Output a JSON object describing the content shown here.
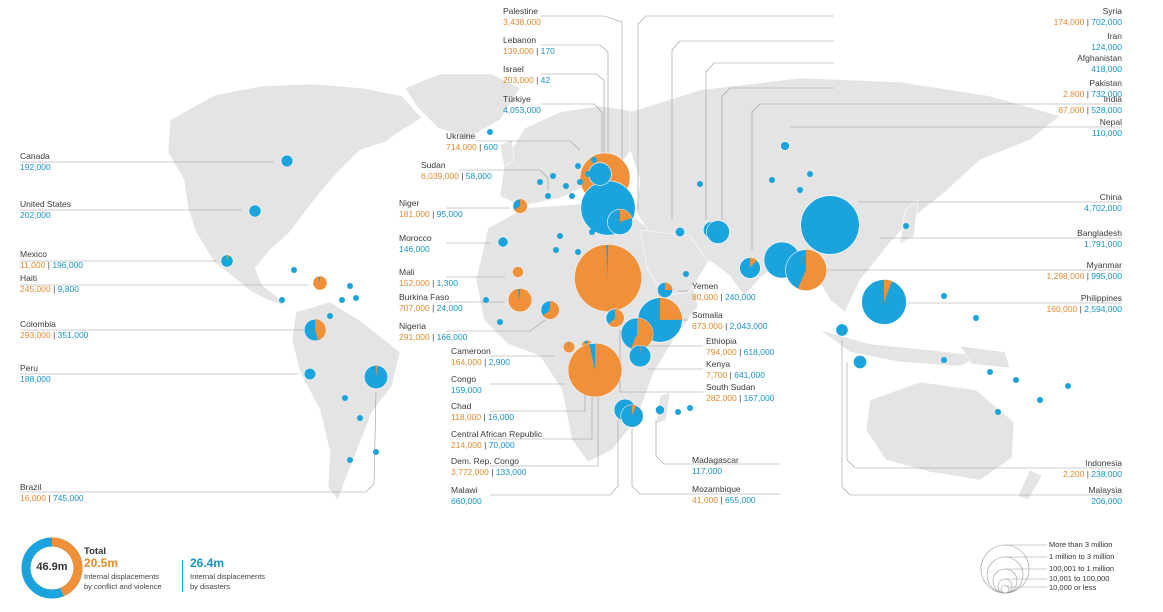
{
  "colors": {
    "conflict": "#f0913a",
    "disaster": "#1aa3dc",
    "land": "#e4e4e4",
    "leader": "#9a9a9a"
  },
  "countries": [
    {
      "key": "palestine",
      "name": "Palestine",
      "conflict": "3,438,000",
      "disaster": "",
      "conflict_n": 3438000,
      "disaster_n": 0
    },
    {
      "key": "lebanon",
      "name": "Lebanon",
      "conflict": "139,000",
      "disaster": "170",
      "conflict_n": 139000,
      "disaster_n": 170
    },
    {
      "key": "israel",
      "name": "Israel",
      "conflict": "203,000",
      "disaster": "42",
      "conflict_n": 203000,
      "disaster_n": 42
    },
    {
      "key": "turkiye",
      "name": "Türkiye",
      "conflict": "",
      "disaster": "4,053,000",
      "conflict_n": 0,
      "disaster_n": 4053000
    },
    {
      "key": "ukraine",
      "name": "Ukraine",
      "conflict": "714,000",
      "disaster": "600",
      "conflict_n": 714000,
      "disaster_n": 600
    },
    {
      "key": "sudan",
      "name": "Sudan",
      "conflict": "6,039,000",
      "disaster": "58,000",
      "conflict_n": 6039000,
      "disaster_n": 58000
    },
    {
      "key": "niger",
      "name": "Niger",
      "conflict": "181,000",
      "disaster": "95,000",
      "conflict_n": 181000,
      "disaster_n": 95000
    },
    {
      "key": "morocco",
      "name": "Morocco",
      "conflict": "",
      "disaster": "146,000",
      "conflict_n": 0,
      "disaster_n": 146000
    },
    {
      "key": "mali",
      "name": "Mali",
      "conflict": "152,000",
      "disaster": "1,300",
      "conflict_n": 152000,
      "disaster_n": 1300
    },
    {
      "key": "burkina",
      "name": "Burkina Faso",
      "conflict": "707,000",
      "disaster": "24,000",
      "conflict_n": 707000,
      "disaster_n": 24000
    },
    {
      "key": "nigeria",
      "name": "Nigeria",
      "conflict": "291,000",
      "disaster": "166,000",
      "conflict_n": 291000,
      "disaster_n": 166000
    },
    {
      "key": "cameroon",
      "name": "Cameroon",
      "conflict": "164,000",
      "disaster": "2,900",
      "conflict_n": 164000,
      "disaster_n": 2900
    },
    {
      "key": "congo",
      "name": "Congo",
      "conflict": "",
      "disaster": "159,000",
      "conflict_n": 0,
      "disaster_n": 159000
    },
    {
      "key": "chad",
      "name": "Chad",
      "conflict": "118,000",
      "disaster": "16,000",
      "conflict_n": 118000,
      "disaster_n": 16000
    },
    {
      "key": "car",
      "name": "Central African Republic",
      "conflict": "214,000",
      "disaster": "70,000",
      "conflict_n": 214000,
      "disaster_n": 70000
    },
    {
      "key": "drc",
      "name": "Dem. Rep. Congo",
      "conflict": "3,772,000",
      "disaster": "133,000",
      "conflict_n": 3772000,
      "disaster_n": 133000
    },
    {
      "key": "malawi",
      "name": "Malawi",
      "conflict": "",
      "disaster": "660,000",
      "conflict_n": 0,
      "disaster_n": 660000
    },
    {
      "key": "syria",
      "name": "Syria",
      "conflict": "174,000",
      "disaster": "702,000",
      "conflict_n": 174000,
      "disaster_n": 702000
    },
    {
      "key": "iran",
      "name": "Iran",
      "conflict": "",
      "disaster": "124,000",
      "conflict_n": 0,
      "disaster_n": 124000
    },
    {
      "key": "afghanistan",
      "name": "Afghanistan",
      "conflict": "",
      "disaster": "418,000",
      "conflict_n": 0,
      "disaster_n": 418000
    },
    {
      "key": "pakistan",
      "name": "Pakistan",
      "conflict": "2,800",
      "disaster": "732,000",
      "conflict_n": 2800,
      "disaster_n": 732000
    },
    {
      "key": "india",
      "name": "India",
      "conflict": "67,000",
      "disaster": "528,000",
      "conflict_n": 67000,
      "disaster_n": 528000
    },
    {
      "key": "nepal",
      "name": "Nepal",
      "conflict": "",
      "disaster": "110,000",
      "conflict_n": 0,
      "disaster_n": 110000
    },
    {
      "key": "china",
      "name": "China",
      "conflict": "",
      "disaster": "4,702,000",
      "conflict_n": 0,
      "disaster_n": 4702000
    },
    {
      "key": "bangladesh",
      "name": "Bangladesh",
      "conflict": "",
      "disaster": "1,791,000",
      "conflict_n": 0,
      "disaster_n": 1791000
    },
    {
      "key": "myanmar",
      "name": "Myanmar",
      "conflict": "1,298,000",
      "disaster": "995,000",
      "conflict_n": 1298000,
      "disaster_n": 995000
    },
    {
      "key": "philippines",
      "name": "Philippines",
      "conflict": "160,000",
      "disaster": "2,594,000",
      "conflict_n": 160000,
      "disaster_n": 2594000
    },
    {
      "key": "yemen",
      "name": "Yemen",
      "conflict": "80,000",
      "disaster": "240,000",
      "conflict_n": 80000,
      "disaster_n": 240000
    },
    {
      "key": "somalia",
      "name": "Somalia",
      "conflict": "673,000",
      "disaster": "2,043,000",
      "conflict_n": 673000,
      "disaster_n": 2043000
    },
    {
      "key": "ethiopia",
      "name": "Ethiopia",
      "conflict": "794,000",
      "disaster": "618,000",
      "conflict_n": 794000,
      "disaster_n": 618000
    },
    {
      "key": "kenya",
      "name": "Kenya",
      "conflict": "7,700",
      "disaster": "641,000",
      "conflict_n": 7700,
      "disaster_n": 641000
    },
    {
      "key": "southsudan",
      "name": "South Sudan",
      "conflict": "282,000",
      "disaster": "167,000",
      "conflict_n": 282000,
      "disaster_n": 167000
    },
    {
      "key": "madagascar",
      "name": "Madagascar",
      "conflict": "",
      "disaster": "117,000",
      "conflict_n": 0,
      "disaster_n": 117000
    },
    {
      "key": "mozambique",
      "name": "Mozambique",
      "conflict": "41,000",
      "disaster": "655,000",
      "conflict_n": 41000,
      "disaster_n": 655000
    },
    {
      "key": "indonesia",
      "name": "Indonesia",
      "conflict": "2,200",
      "disaster": "238,000",
      "conflict_n": 2200,
      "disaster_n": 238000
    },
    {
      "key": "malaysia",
      "name": "Malaysia",
      "conflict": "",
      "disaster": "206,000",
      "conflict_n": 0,
      "disaster_n": 206000
    },
    {
      "key": "canada",
      "name": "Canada",
      "conflict": "",
      "disaster": "192,000",
      "conflict_n": 0,
      "disaster_n": 192000
    },
    {
      "key": "us",
      "name": "United States",
      "conflict": "",
      "disaster": "202,000",
      "conflict_n": 0,
      "disaster_n": 202000
    },
    {
      "key": "mexico",
      "name": "Mexico",
      "conflict": "11,000",
      "disaster": "196,000",
      "conflict_n": 11000,
      "disaster_n": 196000
    },
    {
      "key": "haiti",
      "name": "Haiti",
      "conflict": "245,000",
      "disaster": "9,800",
      "conflict_n": 245000,
      "disaster_n": 9800
    },
    {
      "key": "colombia",
      "name": "Colombia",
      "conflict": "293,000",
      "disaster": "351,000",
      "conflict_n": 293000,
      "disaster_n": 351000
    },
    {
      "key": "peru",
      "name": "Peru",
      "conflict": "",
      "disaster": "188,000",
      "conflict_n": 0,
      "disaster_n": 188000
    },
    {
      "key": "brazil",
      "name": "Brazil",
      "conflict": "16,000",
      "disaster": "745,000",
      "conflict_n": 16000,
      "disaster_n": 745000
    }
  ],
  "totals": {
    "total_title": "Total",
    "grand_total": "46.9m",
    "conflict_value": "20.5m",
    "conflict_line1": "Internal displacements",
    "conflict_line2": "by conflict and violence",
    "disaster_value": "26.4m",
    "disaster_line1": "Internal displacements",
    "disaster_line2": "by disasters"
  },
  "size_legend": [
    "More than 3 million",
    "1 million to 3 million",
    "100,001 to 1 million",
    "10,001 to 100,000",
    "10,000 or less"
  ]
}
